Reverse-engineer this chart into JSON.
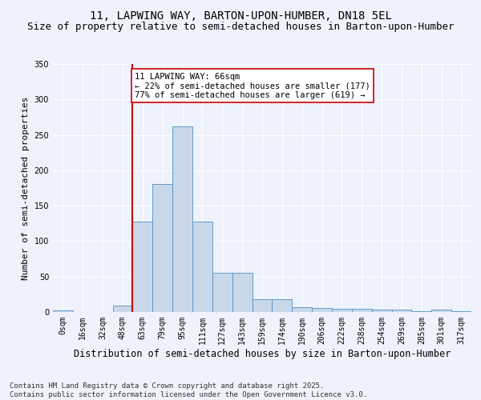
{
  "title": "11, LAPWING WAY, BARTON-UPON-HUMBER, DN18 5EL",
  "subtitle": "Size of property relative to semi-detached houses in Barton-upon-Humber",
  "xlabel": "Distribution of semi-detached houses by size in Barton-upon-Humber",
  "ylabel": "Number of semi-detached properties",
  "bins": [
    "0sqm",
    "16sqm",
    "32sqm",
    "48sqm",
    "63sqm",
    "79sqm",
    "95sqm",
    "111sqm",
    "127sqm",
    "143sqm",
    "159sqm",
    "174sqm",
    "190sqm",
    "206sqm",
    "222sqm",
    "238sqm",
    "254sqm",
    "269sqm",
    "285sqm",
    "301sqm",
    "317sqm"
  ],
  "values": [
    2,
    0,
    0,
    9,
    128,
    181,
    262,
    128,
    55,
    55,
    18,
    18,
    7,
    6,
    5,
    4,
    3,
    3,
    1,
    3,
    1
  ],
  "bar_color": "#c8d8e8",
  "bar_edge_color": "#5090c0",
  "vline_color": "#cc0000",
  "annotation_text": "11 LAPWING WAY: 66sqm\n← 22% of semi-detached houses are smaller (177)\n77% of semi-detached houses are larger (619) →",
  "annotation_box_color": "#ffffff",
  "annotation_box_edge": "#cc0000",
  "ylim": [
    0,
    350
  ],
  "background_color": "#eef2fc",
  "grid_color": "#ffffff",
  "footnote": "Contains HM Land Registry data © Crown copyright and database right 2025.\nContains public sector information licensed under the Open Government Licence v3.0.",
  "title_fontsize": 10,
  "subtitle_fontsize": 9,
  "xlabel_fontsize": 8.5,
  "ylabel_fontsize": 8,
  "tick_fontsize": 7,
  "footnote_fontsize": 6.5,
  "annot_fontsize": 7.5
}
